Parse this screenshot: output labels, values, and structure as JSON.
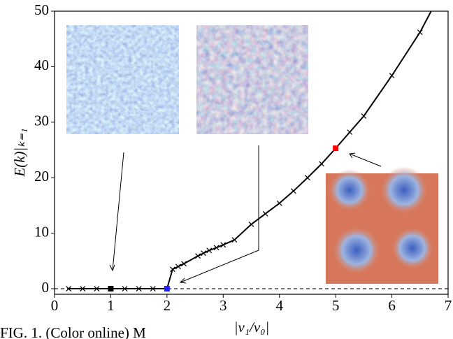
{
  "chart_data": {
    "type": "line",
    "xlabel": "|ν₁/ν₀|",
    "ylabel": "E(k)|ₖ₌₁",
    "caption": "FIG. 1. (Color online) M",
    "x": [
      0.25,
      0.5,
      0.75,
      1.0,
      1.25,
      1.5,
      1.75,
      2.0,
      2.1,
      2.2,
      2.3,
      2.55,
      2.65,
      2.75,
      2.88,
      3.0,
      3.2,
      3.5,
      3.75,
      4.0,
      4.25,
      4.5,
      4.75,
      5.0,
      5.25,
      5.5,
      6.0,
      6.5,
      6.75
    ],
    "series": [
      {
        "color": "#000000",
        "values": [
          0,
          0,
          0,
          0,
          0,
          0,
          0,
          0,
          3.5,
          4.0,
          4.5,
          5.9,
          6.4,
          6.9,
          7.4,
          7.9,
          8.8,
          11.6,
          13.5,
          15.4,
          17.6,
          20.0,
          22.5,
          25.3,
          28.2,
          31.1,
          38.4,
          46.2,
          51
        ]
      }
    ],
    "highlights": {
      "x": [
        1,
        2,
        5
      ],
      "y": [
        0,
        0,
        25.3
      ],
      "colors": [
        "#000000",
        "#1f1fff",
        "#ff0000"
      ]
    },
    "hline": 0,
    "xlim": [
      0,
      7
    ],
    "ylim": [
      -1,
      50
    ],
    "xticks": [
      0,
      1,
      2,
      3,
      4,
      5,
      6,
      7
    ],
    "yticks": [
      0,
      10,
      20,
      30,
      40,
      50
    ]
  }
}
